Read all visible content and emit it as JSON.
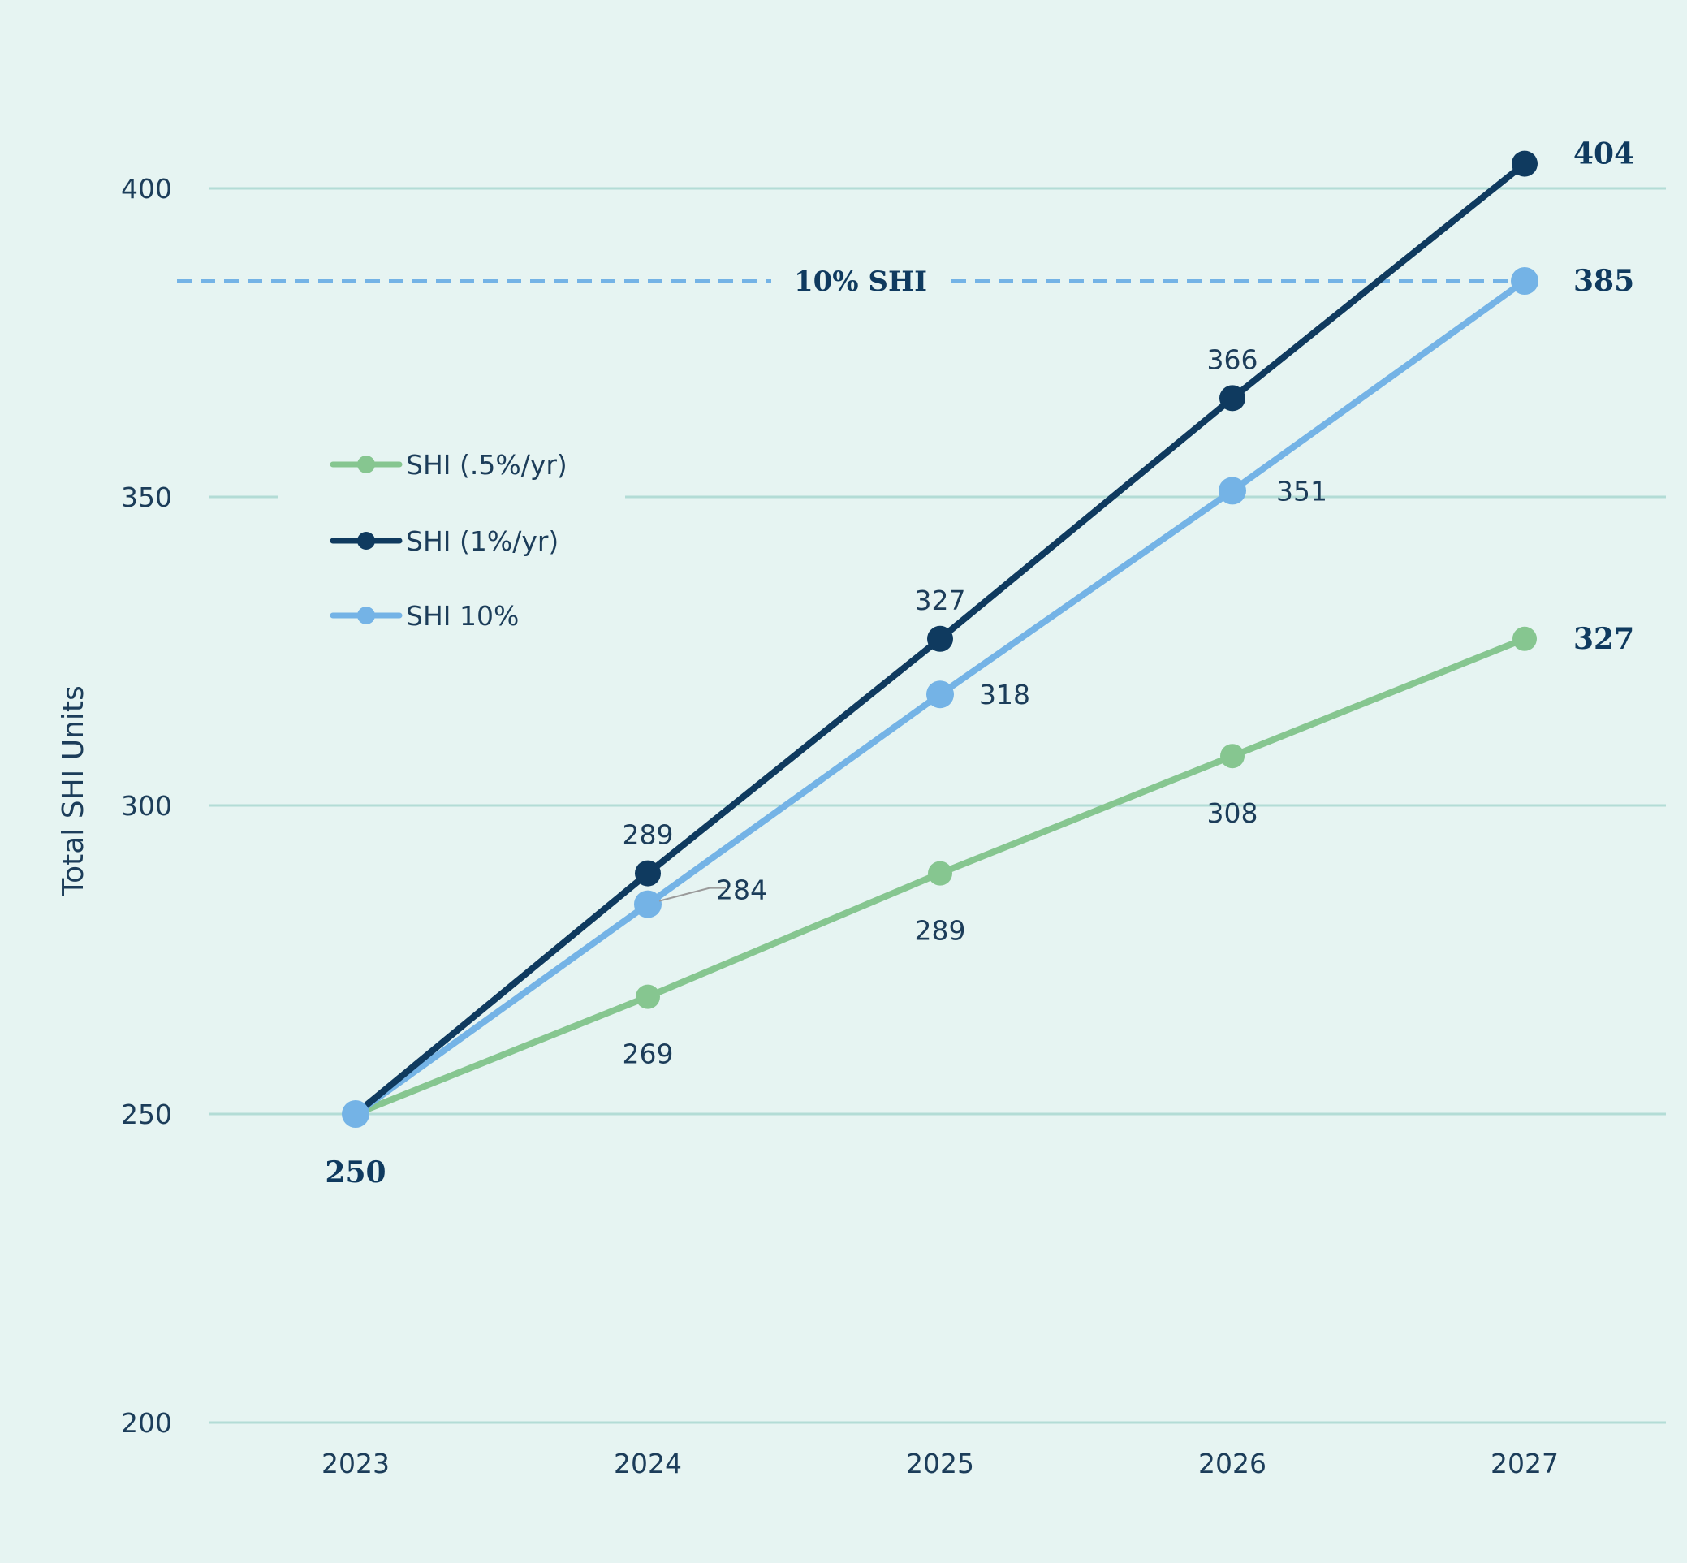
{
  "chart_data": {
    "type": "line",
    "ylabel": "Total SHI Units",
    "xlabel": "",
    "title": "",
    "categories": [
      "2023",
      "2024",
      "2025",
      "2026",
      "2027"
    ],
    "ylim": [
      200,
      400
    ],
    "yticks": [
      200,
      250,
      300,
      350,
      400
    ],
    "grid": true,
    "legend_position": "upper-left",
    "series": [
      {
        "name": "SHI (.5%/yr)",
        "color": "#86c690",
        "values": [
          250,
          269,
          289,
          308,
          327
        ],
        "labels": [
          "",
          "269",
          "289",
          "308",
          "327"
        ]
      },
      {
        "name": "SHI (1%/yr)",
        "color": "#0f3a5f",
        "values": [
          250,
          289,
          327,
          366,
          404
        ],
        "labels": [
          "",
          "289",
          "327",
          "366",
          "404"
        ]
      },
      {
        "name": "SHI 10%",
        "color": "#74b3e6",
        "values": [
          250,
          284,
          318,
          351,
          385
        ],
        "labels": [
          "250",
          "284",
          "318",
          "351",
          "385"
        ]
      }
    ],
    "reference_line": {
      "label": "10% SHI",
      "value": 385,
      "color": "#74b3e6",
      "style": "dashed"
    }
  }
}
